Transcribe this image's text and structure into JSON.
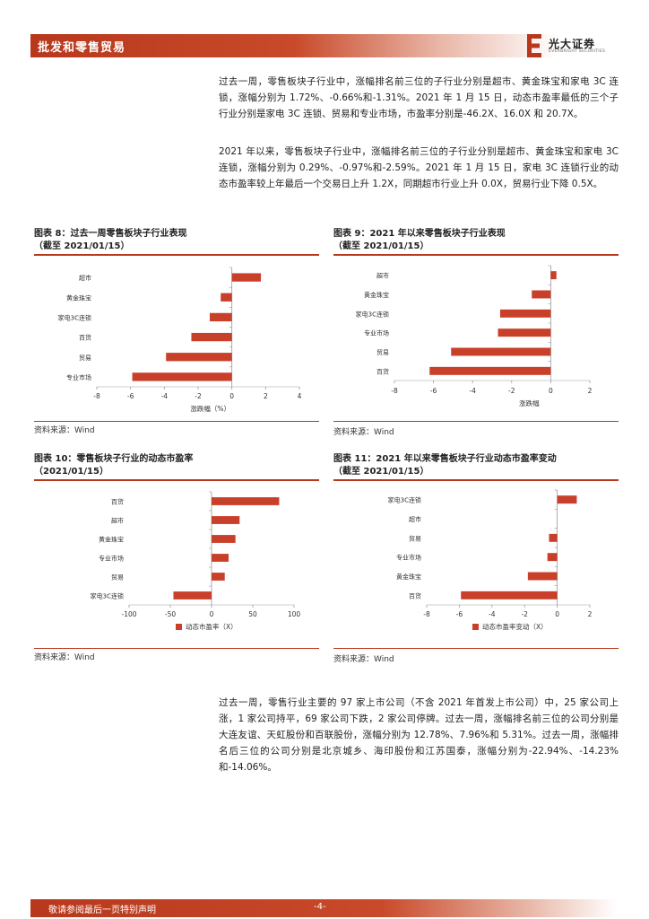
{
  "header": {
    "section_title": "批发和零售贸易",
    "brand_cn": "光大证券",
    "brand_en": "EVERBRIGHT SECURITIES",
    "brand_color": "#b8381d"
  },
  "paragraphs": {
    "p1": "过去一周，零售板块子行业中，涨幅排名前三位的子行业分别是超市、黄金珠宝和家电 3C 连锁，涨幅分别为 1.72%、-0.66%和-1.31%。2021 年 1 月 15 日，动态市盈率最低的三个子行业分别是家电 3C 连锁、贸易和专业市场，市盈率分别是-46.2X、16.0X 和 20.7X。",
    "p2": "2021 年以来，零售板块子行业中，涨幅排名前三位的子行业分别是超市、黄金珠宝和家电 3C 连锁，涨幅分别为 0.29%、-0.97%和-2.59%。2021 年 1 月 15 日，家电 3C 连锁行业的动态市盈率较上年最后一个交易日上升 1.2X，同期超市行业上升 0.0X，贸易行业下降 0.5X。",
    "p3": "过去一周，零售行业主要的 97 家上市公司（不含 2021 年首发上市公司）中，25 家公司上涨，1 家公司持平，69 家公司下跌，2 家公司停牌。过去一周，涨幅排名前三位的公司分别是大连友谊、天虹股份和百联股份，涨幅分别为 12.78%、7.96%和 5.31%。过去一周，涨幅排名后三位的公司分别是北京城乡、海印股份和江苏国泰，涨幅分别为-22.94%、-14.23%和-14.06%。"
  },
  "figures": {
    "fig8": {
      "title_line1": "图表 8：过去一周零售板块子行业表现",
      "title_line2": "（截至 2021/01/15）",
      "source": "资料来源：Wind"
    },
    "fig9": {
      "title_line1": "图表 9：2021 年以来零售板块子行业表现",
      "title_line2": "（截至 2021/01/15）",
      "source": "资料来源：Wind"
    },
    "fig10": {
      "title_line1": "图表 10：零售板块子行业的动态市盈率",
      "title_line2": "（2021/01/15）",
      "source": "资料来源：Wind"
    },
    "fig11": {
      "title_line1": "图表 11：2021 年以来零售板块子行业动态市盈率变动",
      "title_line2": "（截至 2021/01/15）",
      "source": "资料来源：Wind"
    }
  },
  "chart_data": [
    {
      "id": "fig8",
      "type": "bar",
      "orientation": "horizontal",
      "categories": [
        "超市",
        "黄金珠宝",
        "家电3C连锁",
        "百货",
        "贸易",
        "专业市场"
      ],
      "values": [
        1.72,
        -0.66,
        -1.31,
        -2.4,
        -3.9,
        -5.9
      ],
      "xlabel": "涨跌幅（%）",
      "xlim": [
        -8,
        4
      ],
      "xticks": [
        -8,
        -6,
        -4,
        -2,
        0,
        2,
        4
      ],
      "legend": "none",
      "bar_color": "#c9402a"
    },
    {
      "id": "fig9",
      "type": "bar",
      "orientation": "horizontal",
      "categories": [
        "超市",
        "黄金珠宝",
        "家电3C连锁",
        "专业市场",
        "贸易",
        "百货"
      ],
      "values": [
        0.29,
        -0.97,
        -2.59,
        -2.7,
        -5.1,
        -6.2
      ],
      "xlabel": "涨跌幅",
      "xlim": [
        -8,
        2
      ],
      "xticks": [
        -8,
        -6,
        -4,
        -2,
        0,
        2
      ],
      "legend": "none",
      "bar_color": "#c9402a"
    },
    {
      "id": "fig10",
      "type": "bar",
      "orientation": "horizontal",
      "categories": [
        "百货",
        "超市",
        "黄金珠宝",
        "专业市场",
        "贸易",
        "家电3C连锁"
      ],
      "values": [
        82,
        34,
        29,
        20.7,
        16.0,
        -46.2
      ],
      "xlim": [
        -100,
        100
      ],
      "xticks": [
        -100,
        -50,
        0,
        50,
        100
      ],
      "legend": "bottom",
      "series_name": "动态市盈率（X）",
      "bar_color": "#c9402a"
    },
    {
      "id": "fig11",
      "type": "bar",
      "orientation": "horizontal",
      "categories": [
        "家电3C连锁",
        "超市",
        "贸易",
        "专业市场",
        "黄金珠宝",
        "百货"
      ],
      "values": [
        1.2,
        0.0,
        -0.5,
        -0.6,
        -1.8,
        -5.9
      ],
      "xlim": [
        -8,
        2
      ],
      "xticks": [
        -8,
        -6,
        -4,
        -2,
        0,
        2
      ],
      "legend": "bottom",
      "series_name": "动态市盈率变动（X）",
      "bar_color": "#c9402a"
    }
  ],
  "footer": {
    "disclaimer": "敬请参阅最后一页特别声明",
    "page_number": "-4-"
  }
}
